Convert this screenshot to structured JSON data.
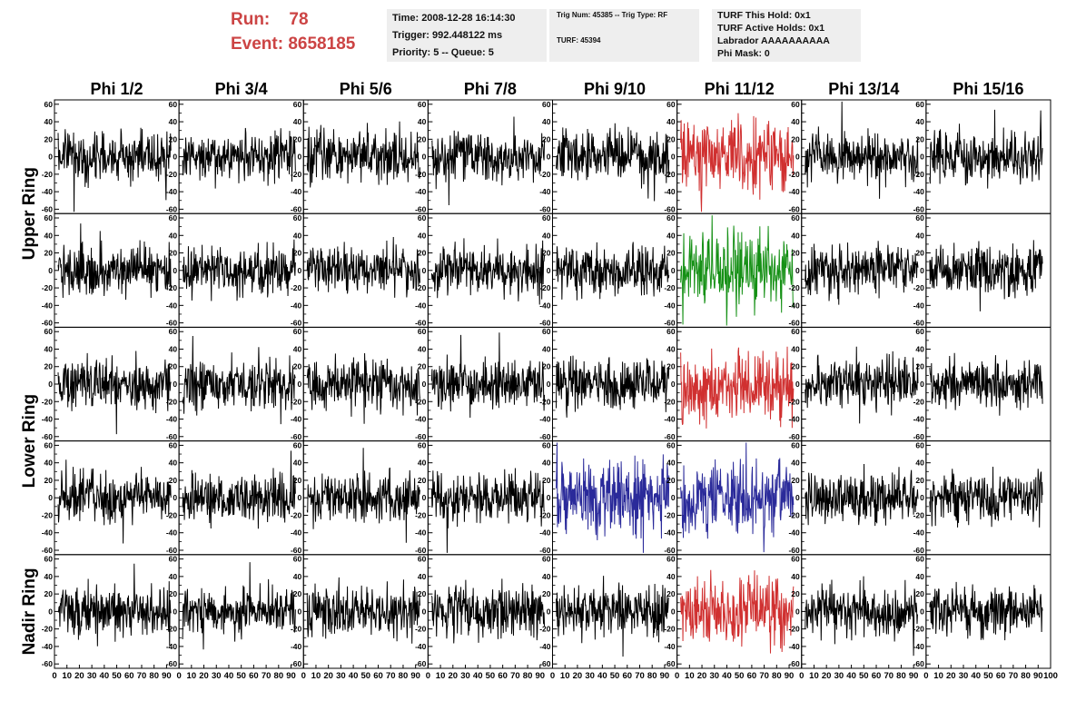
{
  "header": {
    "run_label": "Run:",
    "run_value": "78",
    "event_label": "Event:",
    "event_value": "8658185"
  },
  "info_time": {
    "time": "Time: 2008-12-28 16:14:30",
    "trigger": "Trigger: 992.448122 ms",
    "priority": "Priority: 5 -- Queue: 5"
  },
  "info_trig": {
    "trig": "Trig Num: 45385 -- Trig Type: RF",
    "turf": "TURF: 45394"
  },
  "info_turf": {
    "this_hold": "TURF This Hold: 0x1",
    "active_holds": "TURF Active Holds: 0x1",
    "labrador": "Labrador AAAAAAAAAA",
    "phi_mask": "Phi Mask: 0"
  },
  "chart_data": {
    "type": "line",
    "columns": [
      "Phi 1/2",
      "Phi 3/4",
      "Phi 5/6",
      "Phi 7/8",
      "Phi 9/10",
      "Phi 11/12",
      "Phi 13/14",
      "Phi 15/16"
    ],
    "row_labels": [
      {
        "text": "Upper Ring",
        "rows": [
          0,
          1
        ]
      },
      {
        "text": "Lower Ring",
        "rows": [
          2,
          3
        ]
      },
      {
        "text": "Nadir Ring",
        "rows": [
          4,
          4
        ]
      }
    ],
    "ylim": [
      -65,
      65
    ],
    "yticks": [
      -60,
      -40,
      -20,
      0,
      20,
      40,
      60
    ],
    "xlim": [
      0,
      100
    ],
    "xtick_labels": [
      "0",
      "10",
      "20",
      "30",
      "40",
      "50",
      "60",
      "70",
      "80",
      "90",
      "100"
    ],
    "samples": 256,
    "colors": {
      "default": "#000000",
      "red": "#d03030",
      "green": "#159015",
      "blue": "#2a2a9a"
    },
    "highlight": [
      {
        "row": 0,
        "col": 5,
        "color": "red"
      },
      {
        "row": 1,
        "col": 5,
        "color": "green"
      },
      {
        "row": 2,
        "col": 5,
        "color": "red"
      },
      {
        "row": 3,
        "col": 4,
        "color": "blue"
      },
      {
        "row": 3,
        "col": 5,
        "color": "blue"
      },
      {
        "row": 4,
        "col": 5,
        "color": "red"
      }
    ],
    "amplitude": {
      "default": 14,
      "highlight": 20
    }
  }
}
